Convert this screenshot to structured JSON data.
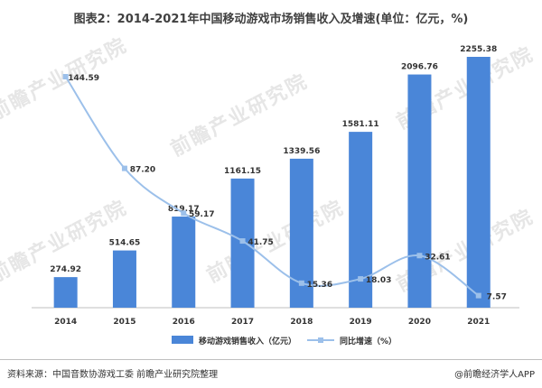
{
  "title": "图表2：2014-2021年中国移动游戏市场销售收入及增速(单位：亿元，%)",
  "watermark": "前瞻产业研究院",
  "source": "资料来源：中国音数协游戏工委 前瞻产业研究院整理",
  "brand": "@前瞻经济学人APP",
  "colors": {
    "bar": "#4a86d8",
    "line": "#9cc0ea",
    "grid": "#d9d9d9"
  },
  "chart_data": {
    "type": "bar",
    "categories": [
      "2014",
      "2015",
      "2016",
      "2017",
      "2018",
      "2019",
      "2020",
      "2021"
    ],
    "series": [
      {
        "name": "移动游戏销售收入（亿元）",
        "type": "bar",
        "values": [
          274.92,
          514.65,
          819.17,
          1161.15,
          1339.56,
          1581.11,
          2096.76,
          2255.38
        ]
      },
      {
        "name": "同比增速（%）",
        "type": "line",
        "values": [
          144.59,
          87.2,
          59.17,
          41.75,
          15.36,
          18.03,
          32.61,
          7.57
        ]
      }
    ],
    "legend_position": "bottom",
    "grid": false
  }
}
